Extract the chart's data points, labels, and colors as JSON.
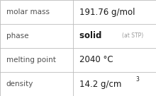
{
  "rows": [
    {
      "label": "molar mass",
      "value": "191.76 g/mol",
      "value_suffix": null,
      "superscript": null
    },
    {
      "label": "phase",
      "value": "solid",
      "value_suffix": "(at STP)",
      "superscript": null
    },
    {
      "label": "melting point",
      "value": "2040 °C",
      "value_suffix": null,
      "superscript": null
    },
    {
      "label": "density",
      "value": "14.2 g/cm",
      "value_suffix": null,
      "superscript": "3"
    }
  ],
  "col_split": 0.47,
  "bg_color": "#ffffff",
  "border_color": "#bbbbbb",
  "label_color": "#505050",
  "value_color": "#1a1a1a",
  "suffix_color": "#999999",
  "label_fontsize": 7.5,
  "value_fontsize": 8.5,
  "suffix_fontsize": 5.5,
  "super_fontsize": 5.5
}
